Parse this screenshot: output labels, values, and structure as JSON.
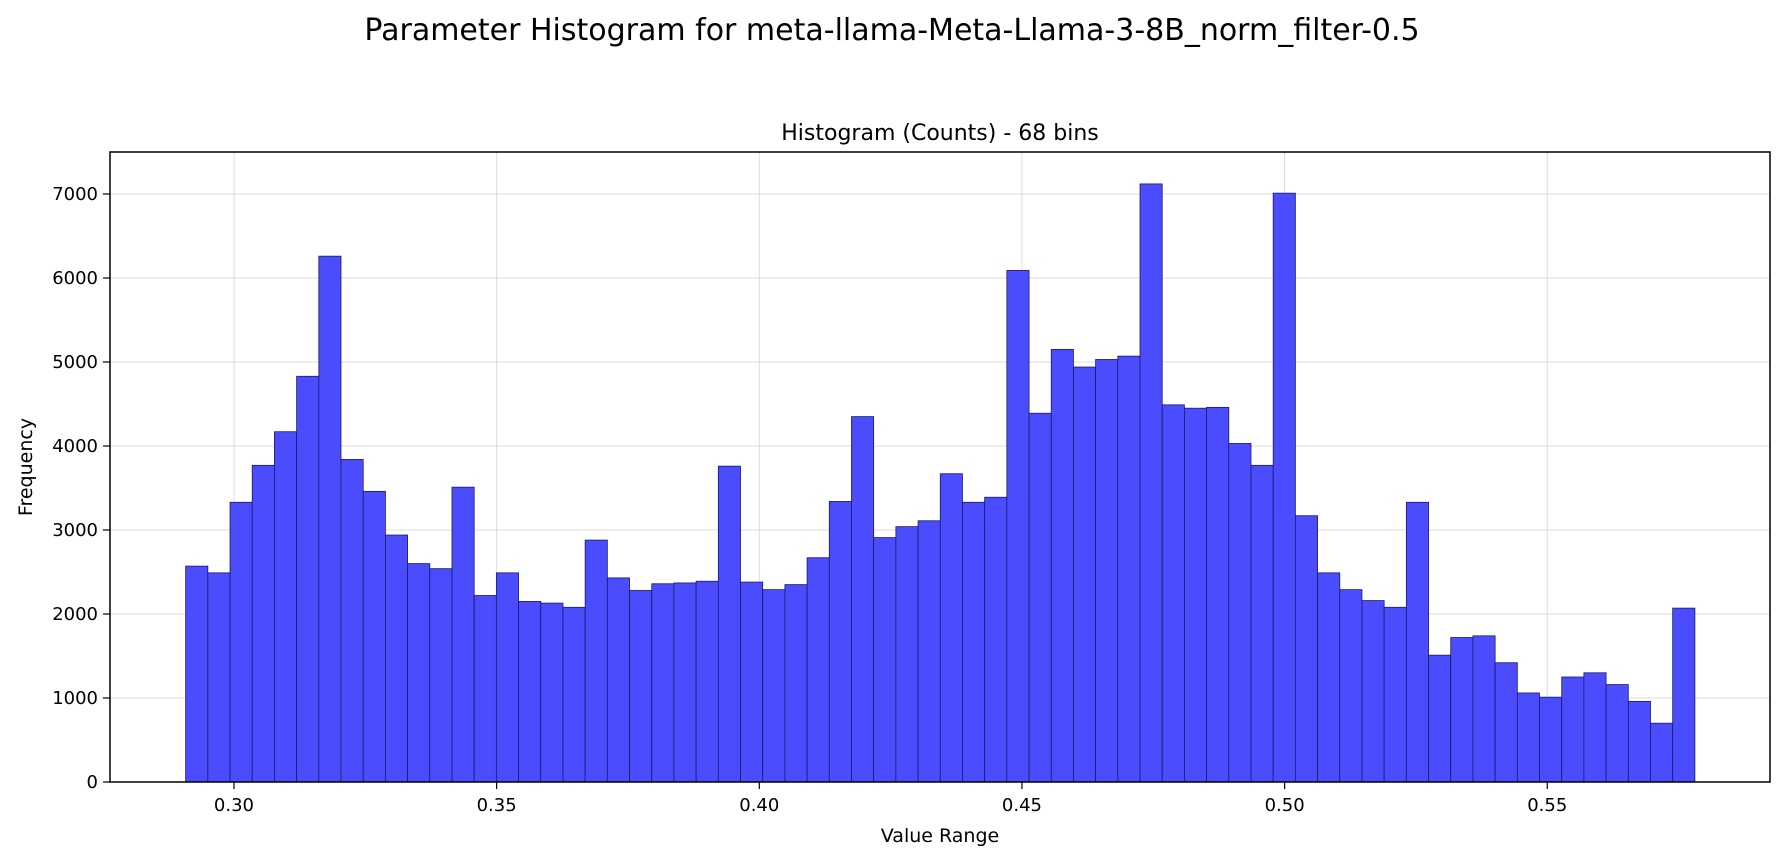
{
  "figure_title": "Parameter Histogram for meta-llama-Meta-Llama-3-8B_norm_filter-0.5",
  "chart_data": {
    "type": "bar",
    "title": "Histogram (Counts) - 68 bins",
    "xlabel": "Value Range",
    "ylabel": "Frequency",
    "bins": 68,
    "bin_start": 0.2908,
    "bin_end": 0.5781,
    "xlim": [
      0.2764,
      0.5924
    ],
    "ylim": [
      0,
      7500
    ],
    "x_ticks": [
      0.3,
      0.35,
      0.4,
      0.45,
      0.5,
      0.55
    ],
    "x_tick_labels": [
      "0.30",
      "0.35",
      "0.40",
      "0.45",
      "0.50",
      "0.55"
    ],
    "y_ticks": [
      0,
      1000,
      2000,
      3000,
      4000,
      5000,
      6000,
      7000
    ],
    "y_tick_labels": [
      "0",
      "1000",
      "2000",
      "3000",
      "4000",
      "5000",
      "6000",
      "7000"
    ],
    "grid": true,
    "bar_color": "#4c4cff",
    "edge_color": "#1a1a66",
    "values": [
      2570,
      2490,
      3330,
      3770,
      4170,
      4830,
      6260,
      3840,
      3460,
      2940,
      2600,
      2540,
      3510,
      2220,
      2490,
      2150,
      2130,
      2080,
      2880,
      2430,
      2280,
      2360,
      2370,
      2390,
      3760,
      2380,
      2290,
      2350,
      2670,
      3340,
      4350,
      2910,
      3040,
      3110,
      3670,
      3330,
      3390,
      6090,
      4390,
      5150,
      4940,
      5030,
      5070,
      7120,
      4490,
      4450,
      4460,
      4030,
      3770,
      7010,
      3170,
      2490,
      2290,
      2160,
      2080,
      3330,
      1510,
      1720,
      1740,
      1420,
      1060,
      1010,
      1250,
      1300,
      1160,
      960,
      700,
      2070
    ]
  }
}
